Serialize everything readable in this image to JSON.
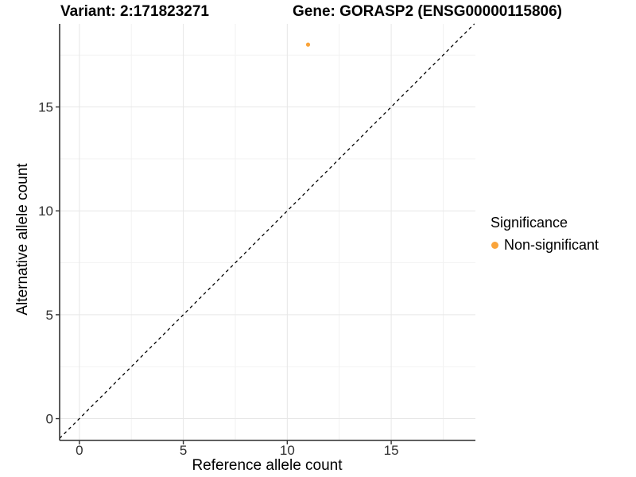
{
  "titles": {
    "variant": "Variant: 2:171823271",
    "gene": "Gene: GORASP2 (ENSG00000115806)"
  },
  "chart_data": {
    "type": "scatter",
    "xlabel": "Reference allele count",
    "ylabel": "Alternative allele count",
    "xlim": [
      -0.95,
      19.05
    ],
    "ylim": [
      -1.05,
      19.0
    ],
    "x_ticks": [
      0,
      5,
      10,
      15
    ],
    "y_ticks": [
      0,
      5,
      10,
      15
    ],
    "x_minor_ticks": [
      2.5,
      7.5,
      12.5,
      17.5
    ],
    "y_minor_ticks": [
      2.5,
      7.5,
      12.5,
      17.5
    ],
    "grid": true,
    "diagonal_line": {
      "slope": 1,
      "intercept": 0,
      "style": "dashed",
      "color": "#000000"
    },
    "series": [
      {
        "name": "Non-significant",
        "color": "#FAA43A",
        "points": [
          {
            "x": 11,
            "y": 18
          }
        ]
      }
    ],
    "legend_position": "right"
  },
  "legend": {
    "title": "Significance",
    "items": [
      {
        "label": "Non-significant",
        "color": "#FAA43A",
        "marker": "circle"
      }
    ]
  },
  "style_colors": {
    "point_orange": "#FAA43A",
    "axis_line": "#4A4A4A",
    "tick_mark": "#333333",
    "tick_label": "#303030",
    "grid_major": "#E7E7E7",
    "grid_minor": "#F2F2F2"
  }
}
